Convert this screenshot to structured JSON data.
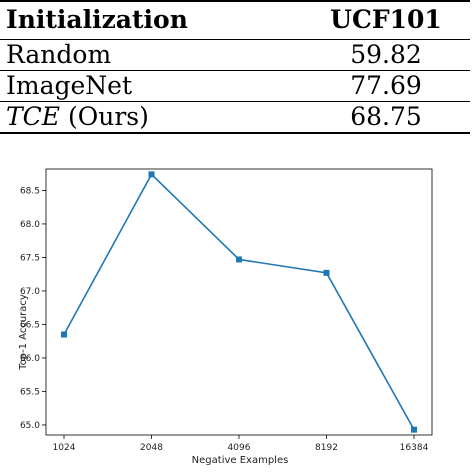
{
  "table": {
    "headers": [
      "Initialization",
      "UCF101"
    ],
    "rows": [
      {
        "name": "Random",
        "value": "59.82"
      },
      {
        "name": "ImageNet",
        "value": "77.69"
      },
      {
        "name_italic": "TCE",
        "name_suffix": " (Ours)",
        "value": "68.75"
      }
    ]
  },
  "chart_data": {
    "type": "line",
    "categories": [
      "1024",
      "2048",
      "4096",
      "8192",
      "16384"
    ],
    "series": [
      {
        "values": [
          66.35,
          68.74,
          67.47,
          67.27,
          64.93
        ],
        "color": "#1f77b4"
      }
    ],
    "xlabel": "Negative Examples",
    "ylabel": "Top-1 Accuracy",
    "ylim": [
      64.85,
      68.82
    ],
    "yticks": [
      "65.0",
      "65.5",
      "66.0",
      "66.5",
      "67.0",
      "67.5",
      "68.0",
      "68.5"
    ],
    "grid": false
  }
}
